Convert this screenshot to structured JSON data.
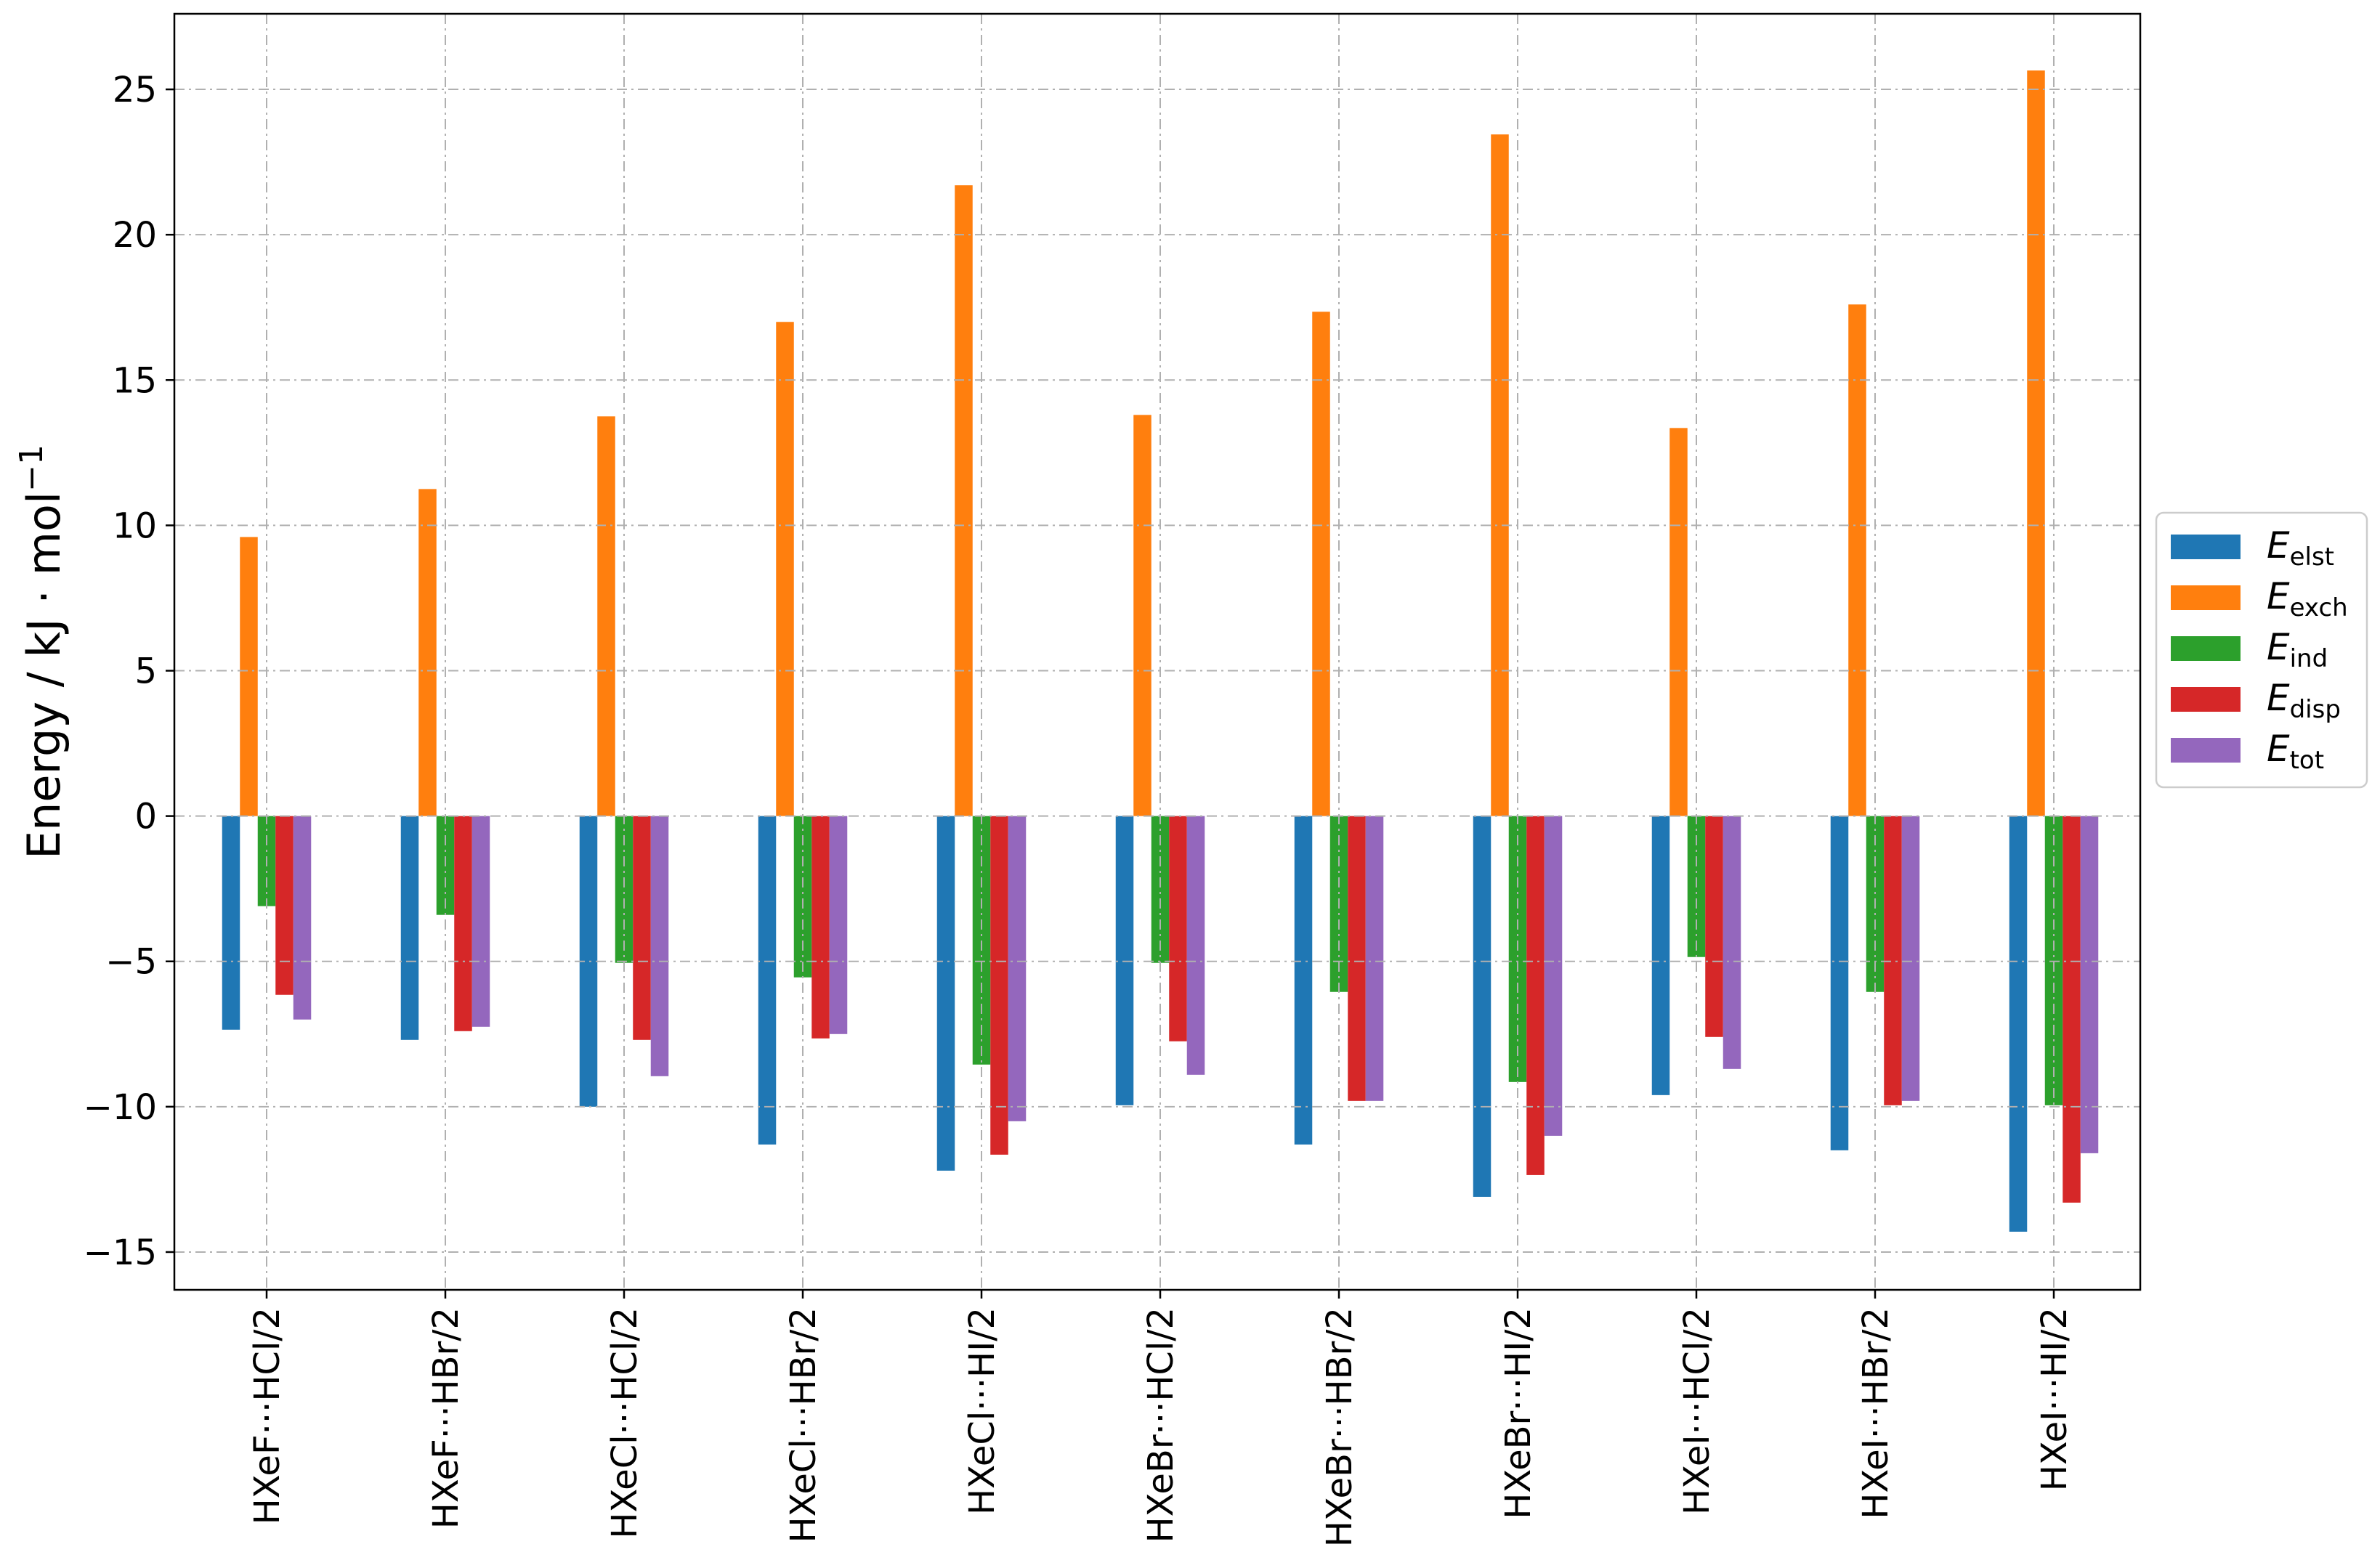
{
  "chart_data": {
    "type": "bar",
    "ylabel": "Energy / kJ · mol",
    "ylabel_superscript": "−1",
    "ylim": [
      -16.3,
      27.6
    ],
    "yticks": [
      -15,
      -10,
      -5,
      0,
      5,
      10,
      15,
      20,
      25
    ],
    "ytick_labels": [
      "−15",
      "−10",
      "−5",
      "0",
      "5",
      "10",
      "15",
      "20",
      "25"
    ],
    "grid": true,
    "legend_position": "right",
    "categories": [
      "HXeF···HCl/2",
      "HXeF···HBr/2",
      "HXeCl···HCl/2",
      "HXeCl···HBr/2",
      "HXeCl···HI/2",
      "HXeBr···HCl/2",
      "HXeBr···HBr/2",
      "HXeBr···HI/2",
      "HXeI···HCl/2",
      "HXeI···HBr/2",
      "HXeI···HI/2"
    ],
    "series": [
      {
        "name": "E",
        "sub": "elst",
        "color": "#1f77b4",
        "values": [
          -7.35,
          -7.7,
          -10.0,
          -11.3,
          -12.2,
          -9.95,
          -11.3,
          -13.1,
          -9.6,
          -11.5,
          -14.3
        ]
      },
      {
        "name": "E",
        "sub": "exch",
        "color": "#ff7f0e",
        "values": [
          9.6,
          11.25,
          13.75,
          17.0,
          21.7,
          13.8,
          17.35,
          23.45,
          13.35,
          17.6,
          25.65
        ]
      },
      {
        "name": "E",
        "sub": "ind",
        "color": "#2ca02c",
        "values": [
          -3.1,
          -3.4,
          -5.05,
          -5.55,
          -8.55,
          -5.05,
          -6.05,
          -9.15,
          -4.85,
          -6.05,
          -9.95
        ]
      },
      {
        "name": "E",
        "sub": "disp",
        "color": "#d62728",
        "values": [
          -6.15,
          -7.4,
          -7.7,
          -7.65,
          -11.65,
          -7.75,
          -9.8,
          -12.35,
          -7.6,
          -9.95,
          -13.3
        ]
      },
      {
        "name": "E",
        "sub": "tot",
        "color": "#9467bd",
        "values": [
          -7.0,
          -7.25,
          -8.95,
          -7.5,
          -10.5,
          -8.9,
          -9.8,
          -11.0,
          -8.7,
          -9.8,
          -11.6
        ]
      }
    ]
  }
}
